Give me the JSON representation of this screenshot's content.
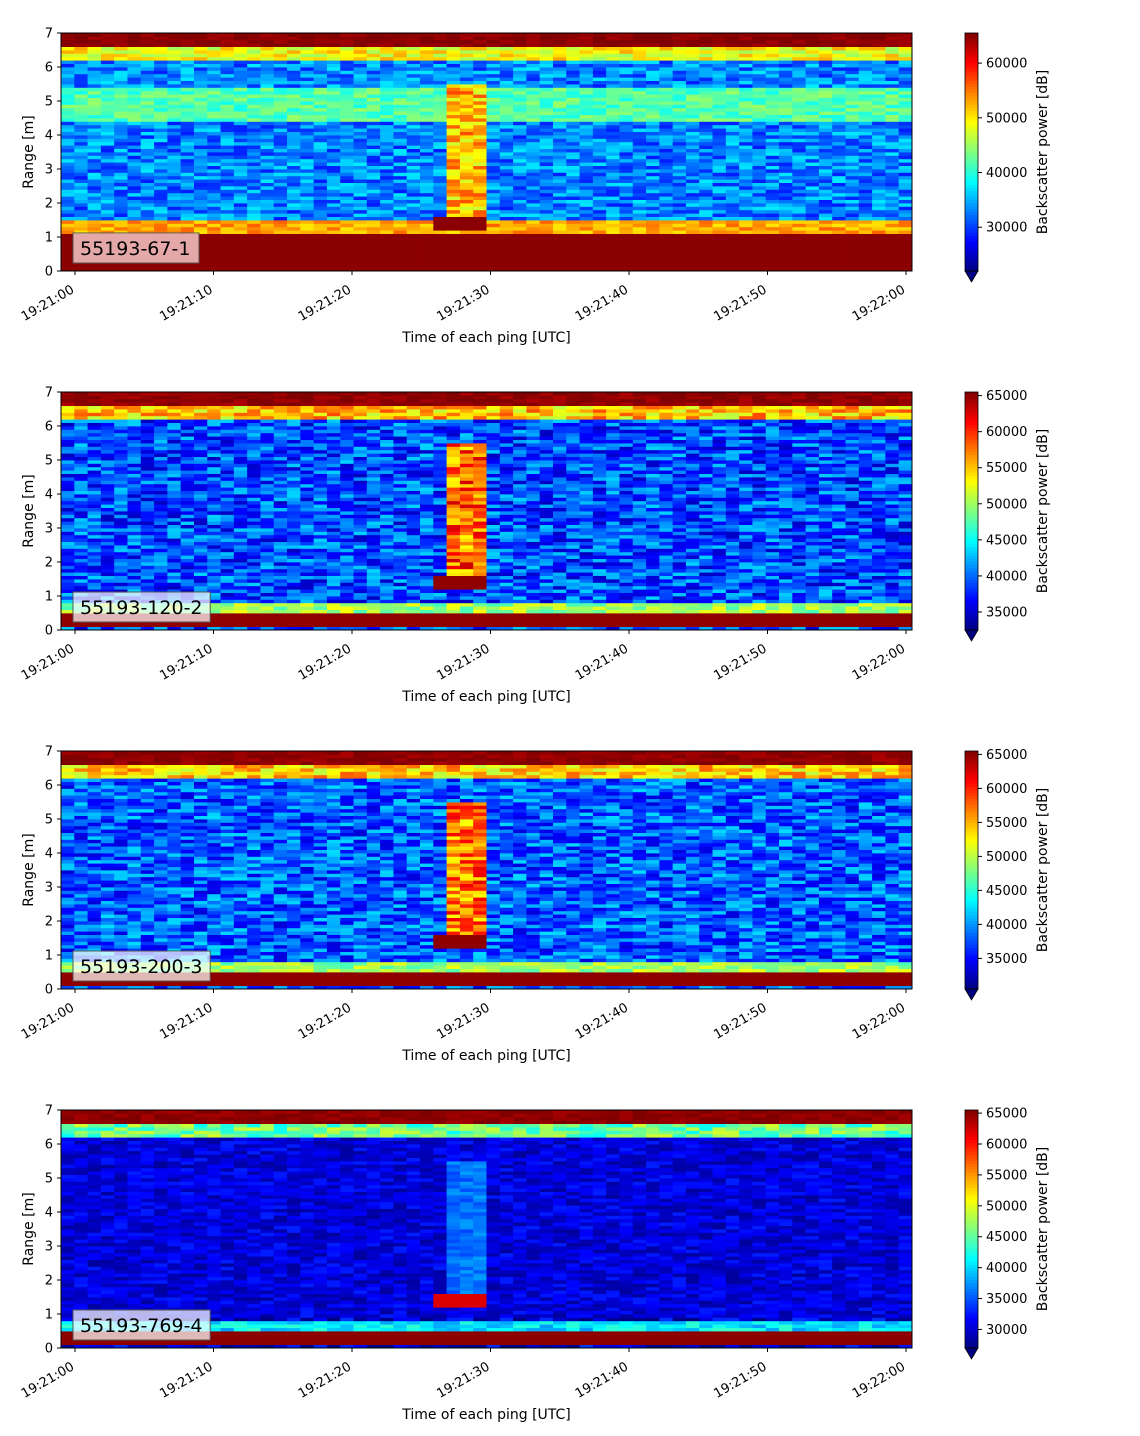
{
  "chart_data": [
    {
      "type": "heatmap",
      "label": "55193-67-1",
      "xlabel": "Time of each ping [UTC]",
      "ylabel": "Range [m]",
      "colorbar_label": "Backscatter power [dB]",
      "x_range": [
        "19:21:00",
        "19:22:00"
      ],
      "x_ticks": [
        "19:21:00",
        "19:21:10",
        "19:21:20",
        "19:21:30",
        "19:21:40",
        "19:21:50",
        "19:22:00"
      ],
      "ylim": [
        0,
        7
      ],
      "y_ticks": [
        "0",
        "1",
        "2",
        "3",
        "4",
        "5",
        "6",
        "7"
      ],
      "clim": [
        22000,
        65500
      ],
      "colorbar_ticks": [
        "30000",
        "40000",
        "50000",
        "60000"
      ],
      "colorbar_tick_values": [
        30000,
        40000,
        50000,
        60000
      ],
      "colormap": "jet",
      "background_level": 33000
    },
    {
      "type": "heatmap",
      "label": "55193-120-2",
      "xlabel": "Time of each ping [UTC]",
      "ylabel": "Range [m]",
      "colorbar_label": "Backscatter power [dB]",
      "x_range": [
        "19:21:00",
        "19:22:00"
      ],
      "x_ticks": [
        "19:21:00",
        "19:21:10",
        "19:21:20",
        "19:21:30",
        "19:21:40",
        "19:21:50",
        "19:22:00"
      ],
      "ylim": [
        0,
        7
      ],
      "y_ticks": [
        "0",
        "1",
        "2",
        "3",
        "4",
        "5",
        "6",
        "7"
      ],
      "clim": [
        32500,
        65500
      ],
      "colorbar_ticks": [
        "35000",
        "40000",
        "45000",
        "50000",
        "55000",
        "60000",
        "65000"
      ],
      "colorbar_tick_values": [
        35000,
        40000,
        45000,
        50000,
        55000,
        60000,
        65000
      ],
      "colormap": "jet",
      "background_level": 39000
    },
    {
      "type": "heatmap",
      "label": "55193-200-3",
      "xlabel": "Time of each ping [UTC]",
      "ylabel": "Range [m]",
      "colorbar_label": "Backscatter power [dB]",
      "x_range": [
        "19:21:00",
        "19:22:00"
      ],
      "x_ticks": [
        "19:21:00",
        "19:21:10",
        "19:21:20",
        "19:21:30",
        "19:21:40",
        "19:21:50",
        "19:22:00"
      ],
      "ylim": [
        0,
        7
      ],
      "y_ticks": [
        "0",
        "1",
        "2",
        "3",
        "4",
        "5",
        "6",
        "7"
      ],
      "clim": [
        30500,
        65500
      ],
      "colorbar_ticks": [
        "35000",
        "40000",
        "45000",
        "50000",
        "55000",
        "60000",
        "65000"
      ],
      "colorbar_tick_values": [
        35000,
        40000,
        45000,
        50000,
        55000,
        60000,
        65000
      ],
      "colormap": "jet",
      "background_level": 38000
    },
    {
      "type": "heatmap",
      "label": "55193-769-4",
      "xlabel": "Time of each ping [UTC]",
      "ylabel": "Range [m]",
      "colorbar_label": "Backscatter power [dB]",
      "x_range": [
        "19:21:00",
        "19:22:00"
      ],
      "x_ticks": [
        "19:21:00",
        "19:21:10",
        "19:21:20",
        "19:21:30",
        "19:21:40",
        "19:21:50",
        "19:22:00"
      ],
      "ylim": [
        0,
        7
      ],
      "y_ticks": [
        "0",
        "1",
        "2",
        "3",
        "4",
        "5",
        "6",
        "7"
      ],
      "clim": [
        27000,
        65500
      ],
      "colorbar_ticks": [
        "30000",
        "35000",
        "40000",
        "45000",
        "50000",
        "55000",
        "60000",
        "65000"
      ],
      "colorbar_tick_values": [
        30000,
        35000,
        40000,
        45000,
        50000,
        55000,
        60000,
        65000
      ],
      "colormap": "jet",
      "background_level": 29500
    }
  ]
}
